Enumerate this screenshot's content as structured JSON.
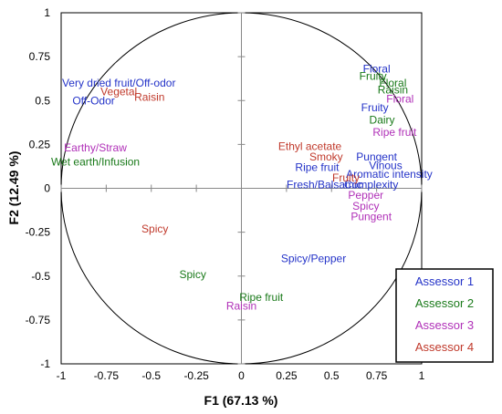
{
  "chart_data": {
    "type": "scatter",
    "xlabel": "F1 (67.13 %)",
    "ylabel": "F2 (12.49 %)",
    "xlim": [
      -1,
      1
    ],
    "ylim": [
      -1,
      1
    ],
    "x_ticks": [
      "-1",
      "-0.75",
      "-0.5",
      "-0.25",
      "0",
      "0.25",
      "0.5",
      "0.75",
      "1"
    ],
    "y_ticks": [
      "-1",
      "-0.75",
      "-0.5",
      "-0.25",
      "0",
      "0.25",
      "0.5",
      "0.75",
      "1"
    ],
    "unit_circle": true,
    "crosshair_at_origin": true,
    "legend_position": "bottom-right",
    "series": [
      {
        "name": "Assessor 1",
        "color": "#2433c8",
        "points": [
          {
            "label": "Very dried fruit/Off-odor",
            "x": -0.68,
            "y": 0.6
          },
          {
            "label": "Off-Odor",
            "x": -0.82,
            "y": 0.5
          },
          {
            "label": "Floral",
            "x": 0.75,
            "y": 0.68
          },
          {
            "label": "Fruity",
            "x": 0.74,
            "y": 0.46
          },
          {
            "label": "Pungent",
            "x": 0.75,
            "y": 0.18
          },
          {
            "label": "Vinous",
            "x": 0.8,
            "y": 0.13
          },
          {
            "label": "Aromatic intensity",
            "x": 0.82,
            "y": 0.08
          },
          {
            "label": "Ripe fruit",
            "x": 0.42,
            "y": 0.12
          },
          {
            "label": "Complexity",
            "x": 0.72,
            "y": 0.02
          },
          {
            "label": "Fresh/Balsamic",
            "x": 0.46,
            "y": 0.02
          },
          {
            "label": "Spicy/Pepper",
            "x": 0.4,
            "y": -0.4
          }
        ]
      },
      {
        "name": "Assessor 2",
        "color": "#1a7a1a",
        "points": [
          {
            "label": "Fruity",
            "x": 0.73,
            "y": 0.64
          },
          {
            "label": "Floral",
            "x": 0.84,
            "y": 0.6
          },
          {
            "label": "Raisin",
            "x": 0.84,
            "y": 0.56
          },
          {
            "label": "Dairy",
            "x": 0.78,
            "y": 0.39
          },
          {
            "label": "Wet earth/Infusion",
            "x": -0.81,
            "y": 0.15
          },
          {
            "label": "Spicy",
            "x": -0.27,
            "y": -0.49
          },
          {
            "label": "Ripe fruit",
            "x": 0.11,
            "y": -0.62
          }
        ]
      },
      {
        "name": "Assessor 3",
        "color": "#b030b8",
        "points": [
          {
            "label": "Floral",
            "x": 0.88,
            "y": 0.51
          },
          {
            "label": "Ripe fruit",
            "x": 0.85,
            "y": 0.32
          },
          {
            "label": "Earthy/Straw",
            "x": -0.81,
            "y": 0.23
          },
          {
            "label": "Pepper",
            "x": 0.69,
            "y": -0.04
          },
          {
            "label": "Spicy",
            "x": 0.69,
            "y": -0.1
          },
          {
            "label": "Pungent",
            "x": 0.72,
            "y": -0.16
          },
          {
            "label": "Raisin",
            "x": 0.0,
            "y": -0.67
          }
        ]
      },
      {
        "name": "Assessor 4",
        "color": "#c0392b",
        "points": [
          {
            "label": "Vegetal",
            "x": -0.68,
            "y": 0.55
          },
          {
            "label": "Raisin",
            "x": -0.51,
            "y": 0.52
          },
          {
            "label": "Ethyl acetate",
            "x": 0.38,
            "y": 0.24
          },
          {
            "label": "Smoky",
            "x": 0.47,
            "y": 0.18
          },
          {
            "label": "Fruity",
            "x": 0.58,
            "y": 0.06
          },
          {
            "label": "Spicy",
            "x": -0.48,
            "y": -0.23
          }
        ]
      }
    ]
  }
}
